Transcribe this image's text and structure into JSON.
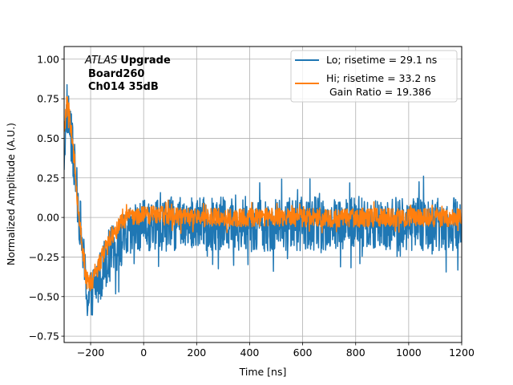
{
  "chart_data": {
    "type": "line",
    "xlabel": "Time [ns]",
    "ylabel": "Normalized Amplitude (A.U.)",
    "xlim": [
      -300,
      1200
    ],
    "ylim": [
      -0.79,
      1.08
    ],
    "grid": true,
    "xticks": [
      -200,
      0,
      200,
      400,
      600,
      800,
      1000,
      1200
    ],
    "xtick_labels": [
      "−200",
      "0",
      "200",
      "400",
      "600",
      "800",
      "1000",
      "1200"
    ],
    "yticks": [
      -0.75,
      -0.5,
      -0.25,
      0.0,
      0.25,
      0.5,
      0.75,
      1.0
    ],
    "ytick_labels": [
      "−0.75",
      "−0.50",
      "−0.25",
      "0.00",
      "0.25",
      "0.50",
      "0.75",
      "1.00"
    ],
    "annotation": {
      "italic": "ATLAS",
      "bold": "Upgrade",
      "line2": "Board260",
      "line3": "Ch014 35dB"
    },
    "legend": {
      "location": "upper right",
      "entries": [
        "Lo; risetime = 29.1 ns",
        "Hi; risetime = 33.2 ns",
        " Gain Ratio = 19.386"
      ]
    },
    "series": [
      {
        "name": "Lo",
        "color": "#1f77b4",
        "risetime_ns": 29.1,
        "noise_amplitude": 0.17,
        "x": [
          -300,
          -290,
          -280,
          -270,
          -260,
          -250,
          -240,
          -230,
          -220,
          -210,
          -200,
          -190,
          -180,
          -170,
          -160,
          -150,
          -140,
          -120,
          -100,
          -80,
          -60,
          -40,
          -20,
          0,
          50,
          100,
          150,
          200,
          300,
          400,
          500,
          600,
          700,
          800,
          900,
          1000,
          1100,
          1200
        ],
        "y": [
          0.4,
          0.7,
          0.6,
          0.45,
          0.28,
          0.12,
          -0.02,
          -0.2,
          -0.4,
          -0.52,
          -0.5,
          -0.45,
          -0.42,
          -0.38,
          -0.34,
          -0.3,
          -0.26,
          -0.22,
          -0.18,
          -0.15,
          -0.12,
          -0.1,
          -0.08,
          -0.06,
          -0.05,
          -0.04,
          -0.04,
          -0.04,
          -0.04,
          -0.04,
          -0.05,
          -0.04,
          -0.04,
          -0.04,
          -0.04,
          -0.04,
          -0.04,
          -0.04
        ]
      },
      {
        "name": "Hi",
        "color": "#ff7f0e",
        "risetime_ns": 33.2,
        "gain_ratio": 19.386,
        "noise_amplitude": 0.06,
        "x": [
          -300,
          -290,
          -280,
          -270,
          -260,
          -250,
          -240,
          -230,
          -220,
          -210,
          -200,
          -190,
          -180,
          -170,
          -160,
          -150,
          -140,
          -120,
          -100,
          -80,
          -60,
          -40,
          -20,
          0,
          50,
          100,
          150,
          200,
          300,
          400,
          500,
          600,
          700,
          800,
          900,
          1000,
          1100,
          1200
        ],
        "y": [
          0.52,
          0.72,
          0.65,
          0.5,
          0.32,
          0.12,
          -0.05,
          -0.2,
          -0.35,
          -0.42,
          -0.42,
          -0.38,
          -0.34,
          -0.3,
          -0.26,
          -0.22,
          -0.18,
          -0.12,
          -0.07,
          -0.03,
          -0.01,
          0.0,
          0.01,
          0.01,
          0.02,
          0.01,
          0.0,
          0.0,
          0.0,
          0.0,
          0.0,
          0.0,
          0.0,
          0.0,
          0.0,
          0.0,
          0.0,
          0.0
        ]
      }
    ]
  }
}
